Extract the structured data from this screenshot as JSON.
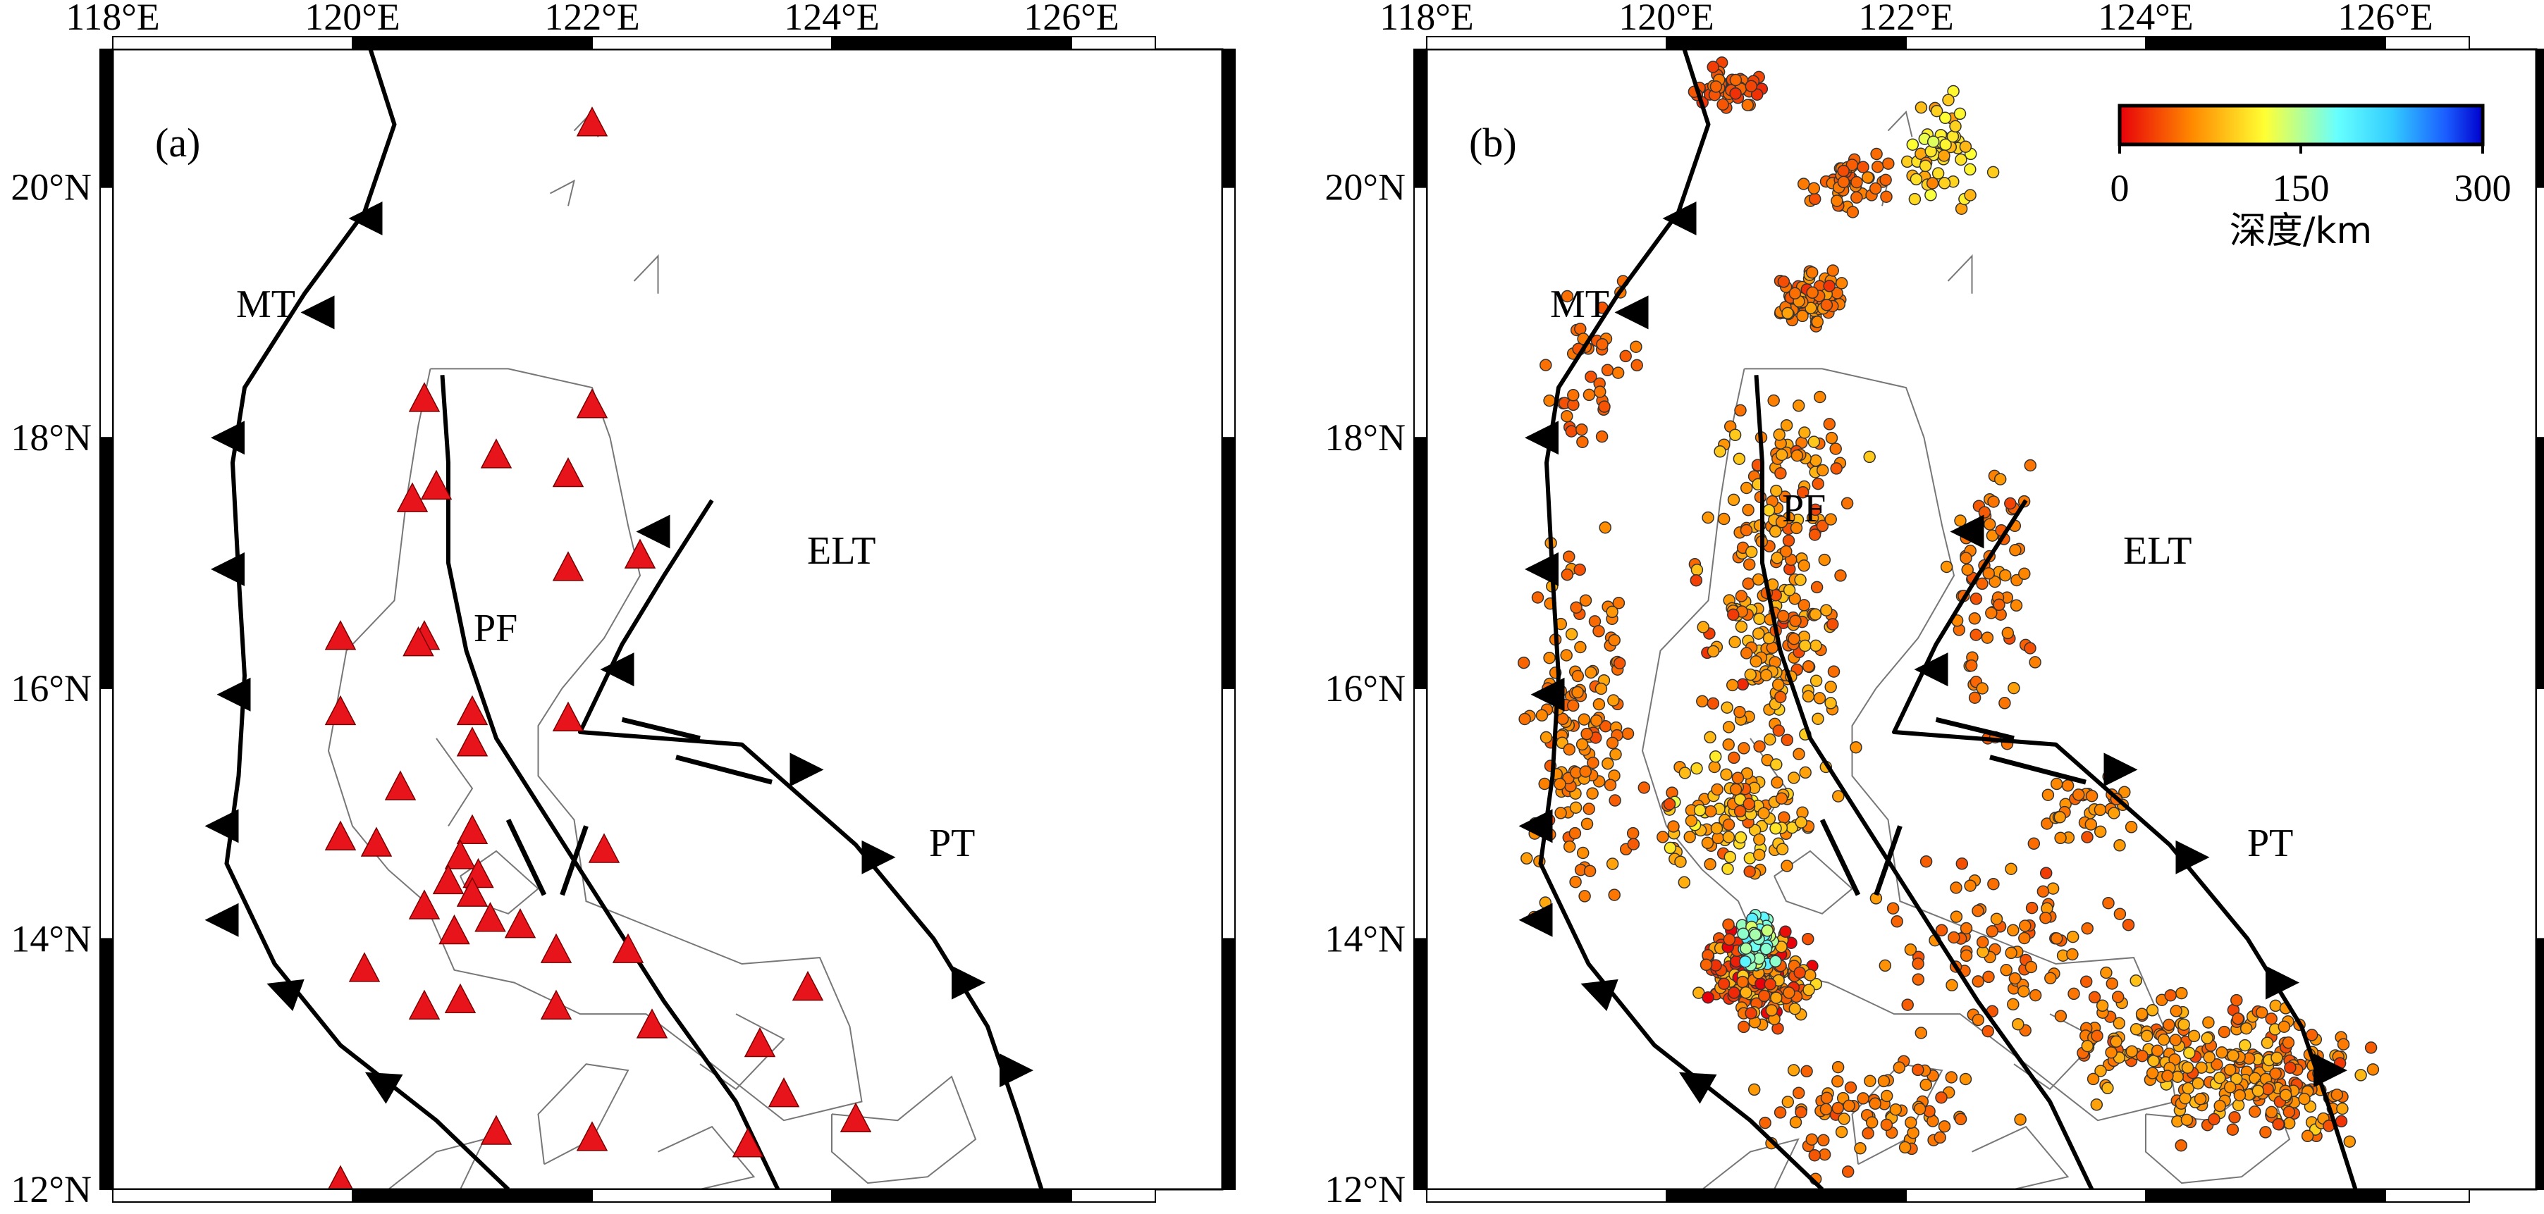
{
  "map": {
    "lon_ticks": [
      "118°E",
      "120°E",
      "122°E",
      "124°E",
      "126°E"
    ],
    "lat_ticks": [
      "12°N",
      "14°N",
      "16°N",
      "18°N",
      "20°N"
    ],
    "lon_range": [
      118,
      126.7
    ],
    "lat_range": [
      12,
      21.1
    ]
  },
  "panel_a": {
    "tag": "(a)",
    "fault_labels": {
      "mt": "MT",
      "pf": "PF",
      "elt": "ELT",
      "pt": "PT"
    },
    "station_color": "#e8141c",
    "stations": [
      [
        122,
        20.5
      ],
      [
        120.6,
        18.3
      ],
      [
        122,
        18.25
      ],
      [
        121.2,
        17.85
      ],
      [
        120.7,
        17.6
      ],
      [
        120.5,
        17.5
      ],
      [
        121.8,
        17.7
      ],
      [
        121.8,
        16.95
      ],
      [
        122.4,
        17.05
      ],
      [
        119.9,
        16.4
      ],
      [
        120.6,
        16.4
      ],
      [
        120.55,
        16.35
      ],
      [
        119.9,
        15.8
      ],
      [
        121.0,
        15.8
      ],
      [
        121.8,
        15.75
      ],
      [
        121.0,
        15.55
      ],
      [
        120.4,
        15.2
      ],
      [
        119.9,
        14.8
      ],
      [
        120.2,
        14.75
      ],
      [
        121.0,
        14.85
      ],
      [
        120.9,
        14.65
      ],
      [
        121.05,
        14.5
      ],
      [
        120.8,
        14.45
      ],
      [
        121.0,
        14.35
      ],
      [
        120.6,
        14.25
      ],
      [
        120.85,
        14.05
      ],
      [
        121.15,
        14.15
      ],
      [
        121.4,
        14.1
      ],
      [
        122.1,
        14.7
      ],
      [
        121.7,
        13.9
      ],
      [
        122.3,
        13.9
      ],
      [
        120.1,
        13.75
      ],
      [
        120.6,
        13.45
      ],
      [
        120.9,
        13.5
      ],
      [
        121.7,
        13.45
      ],
      [
        122.5,
        13.3
      ],
      [
        123.8,
        13.6
      ],
      [
        123.4,
        13.15
      ],
      [
        123.6,
        12.75
      ],
      [
        124.2,
        12.55
      ],
      [
        121.2,
        12.45
      ],
      [
        122.0,
        12.4
      ],
      [
        123.3,
        12.35
      ],
      [
        119.9,
        12.05
      ]
    ]
  },
  "panel_b": {
    "tag": "(b)",
    "fault_labels": {
      "mt": "MT",
      "pf": "PF",
      "elt": "ELT",
      "pt": "PT"
    },
    "colorbar": {
      "min_label": "0",
      "mid_label": "150",
      "max_label": "300",
      "title": "深度/km",
      "colors": [
        "#e8000a",
        "#ff8a00",
        "#ffff33",
        "#66ffff",
        "#33ccff",
        "#1a5cff",
        "#0000cc"
      ]
    }
  }
}
